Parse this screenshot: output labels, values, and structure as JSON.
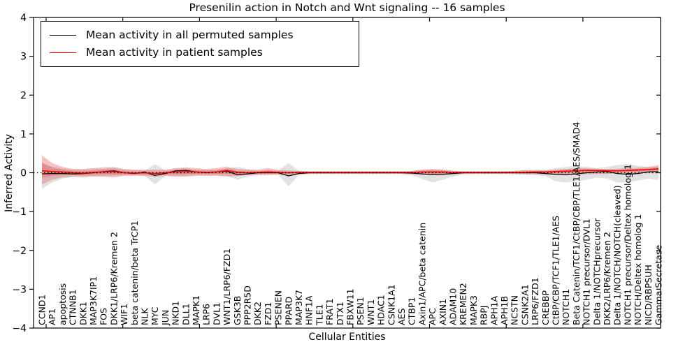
{
  "chart_data": {
    "type": "line",
    "title": "Presenilin action in Notch and Wnt signaling -- 16 samples",
    "xlabel": "Cellular Entities",
    "ylabel": "Inferred Activity",
    "ylim": [
      -4,
      4
    ],
    "ytick_values": [
      4,
      3,
      2,
      1,
      0,
      -1,
      -2,
      -3,
      -4
    ],
    "ytick_labels": [
      "4",
      "3",
      "2",
      "1",
      "0",
      "−1",
      "−2",
      "−3",
      "−4"
    ],
    "grid": false,
    "zero_line": "dotted-black",
    "legend_position": "upper left",
    "x_tick_label_rotation": 90,
    "categories": [
      "CCND1",
      "AP1",
      "apoptosis",
      "CTNNB1",
      "DKK1",
      "MAP3K7IP1",
      "FOS",
      "DKK1/LRP6/Kremen 2",
      "WIF1",
      "beta catenin/beta TrCP1",
      "NLK",
      "MYC",
      "JUN",
      "NKD1",
      "DLL1",
      "MAPK1",
      "LRP6",
      "DVL1",
      "WNT1/LRP6/FZD1",
      "GSK3B",
      "PPP2R5D",
      "DKK2",
      "FZD1",
      "PSENEN",
      "PPARD",
      "MAP3K7",
      "HNF1A",
      "TLE1",
      "FRAT1",
      "DTX1",
      "FBXW11",
      "PSEN1",
      "WNT1",
      "HDAC1",
      "CSNK1A1",
      "AES",
      "CTBP1",
      "Axin1/APC/beta catenin",
      "APC",
      "AXIN1",
      "ADAM10",
      "KREMEN2",
      "MAPK3",
      "RBPJ",
      "APH1A",
      "APH1B",
      "NCSTN",
      "CSNK2A1",
      "LRP6/FZD1",
      "CREBBP",
      "CtBP/CBP/TCF1/TLE1/AES",
      "NOTCH1",
      "Beta Catenin/TCF1/CtBP/CBP/TLE1/AES/SMAD4",
      "NOTCH1 precursor/DVL1",
      "Delta 1/NOTCHprecursor",
      "DKK2/LRP6/Kremen 2",
      "Delta 1/NOTCH/NOTCH(cleaved)",
      "NOTCH1 precursor/Deltex homolog 1",
      "NOTCH/Deltex homolog 1",
      "NICD/RBPSUH",
      "Gamma Secretase"
    ],
    "series": [
      {
        "name": "Mean activity in all permuted samples",
        "color": "#000000",
        "band_color": "#bebebe",
        "values": [
          -0.03,
          -0.02,
          -0.02,
          -0.03,
          -0.02,
          0,
          0.03,
          0.05,
          0,
          -0.02,
          0.02,
          -0.07,
          -0.02,
          0.05,
          0.06,
          0.02,
          0,
          0.02,
          0.04,
          -0.05,
          -0.03,
          0,
          0,
          0,
          -0.08,
          -0.02,
          0,
          0,
          0,
          0,
          0,
          0,
          0,
          0,
          0,
          0,
          -0.01,
          -0.03,
          -0.05,
          -0.04,
          -0.02,
          0,
          0,
          0,
          0,
          0,
          0,
          0,
          0,
          -0.02,
          -0.04,
          -0.05,
          -0.03,
          0,
          0.02,
          0.03,
          -0.02,
          -0.04,
          -0.02,
          0.02,
          0.03
        ],
        "upper": [
          0.26,
          0.15,
          0.1,
          0.08,
          0.08,
          0.1,
          0.1,
          0.12,
          0.08,
          0.06,
          0.06,
          0.22,
          0.06,
          0.1,
          0.12,
          0.08,
          0.06,
          0.08,
          0.1,
          0.15,
          0.1,
          0.05,
          0.04,
          0.05,
          0.25,
          0.05,
          0.03,
          0.03,
          0.03,
          0.03,
          0.03,
          0.03,
          0.03,
          0.03,
          0.03,
          0.03,
          0.05,
          0.08,
          0.08,
          0.08,
          0.05,
          0.03,
          0.03,
          0.03,
          0.03,
          0.03,
          0.04,
          0.06,
          0.08,
          0.08,
          0.12,
          0.15,
          0.18,
          0.15,
          0.12,
          0.15,
          0.2,
          0.22,
          0.18,
          0.15,
          0.14
        ],
        "lower": [
          -0.41,
          -0.25,
          -0.15,
          -0.1,
          -0.08,
          -0.08,
          -0.08,
          -0.08,
          -0.06,
          -0.06,
          -0.08,
          -0.3,
          -0.08,
          -0.08,
          -0.08,
          -0.06,
          -0.06,
          -0.06,
          -0.08,
          -0.18,
          -0.1,
          -0.05,
          -0.04,
          -0.05,
          -0.35,
          -0.06,
          -0.03,
          -0.03,
          -0.03,
          -0.03,
          -0.03,
          -0.03,
          -0.03,
          -0.03,
          -0.03,
          -0.03,
          -0.06,
          -0.16,
          -0.25,
          -0.18,
          -0.1,
          -0.04,
          -0.03,
          -0.03,
          -0.03,
          -0.03,
          -0.04,
          -0.05,
          -0.06,
          -0.08,
          -0.22,
          -0.25,
          -0.22,
          -0.18,
          -0.12,
          -0.15,
          -0.25,
          -0.25,
          -0.2,
          -0.15,
          -0.18
        ]
      },
      {
        "name": "Mean activity in patient samples",
        "color": "#ff0000",
        "band_color": "#e06060",
        "values": [
          0.05,
          0.03,
          0.02,
          0,
          -0.01,
          0.01,
          0.02,
          0.03,
          0,
          -0.01,
          0,
          -0.02,
          0,
          0.02,
          0.03,
          0.02,
          0.01,
          0.02,
          0.06,
          0.01,
          0,
          0.01,
          0.02,
          0.01,
          0,
          0.01,
          0.01,
          0.01,
          0.01,
          0.01,
          0.01,
          0.01,
          0.01,
          0.01,
          0.01,
          0.01,
          0.01,
          0.02,
          0.02,
          0.02,
          0.01,
          0.01,
          0.01,
          0.01,
          0.01,
          0.01,
          0.01,
          0.01,
          0.02,
          0.02,
          0.03,
          0.04,
          0.05,
          0.06,
          0.06,
          0.05,
          0.05,
          0.06,
          0.07,
          0.08,
          0.1
        ],
        "upper": [
          0.45,
          0.25,
          0.15,
          0.1,
          0.1,
          0.12,
          0.14,
          0.15,
          0.1,
          0.08,
          0.08,
          0.08,
          0.08,
          0.12,
          0.14,
          0.12,
          0.1,
          0.12,
          0.16,
          0.1,
          0.08,
          0.08,
          0.12,
          0.08,
          0.06,
          0.05,
          0.04,
          0.04,
          0.04,
          0.04,
          0.04,
          0.04,
          0.04,
          0.04,
          0.04,
          0.04,
          0.04,
          0.08,
          0.1,
          0.08,
          0.05,
          0.04,
          0.04,
          0.04,
          0.04,
          0.04,
          0.05,
          0.07,
          0.06,
          0.06,
          0.08,
          0.1,
          0.12,
          0.12,
          0.1,
          0.1,
          0.1,
          0.12,
          0.13,
          0.15,
          0.2
        ],
        "lower": [
          -0.3,
          -0.18,
          -0.12,
          -0.1,
          -0.12,
          -0.1,
          -0.1,
          -0.12,
          -0.08,
          -0.08,
          -0.08,
          -0.1,
          -0.08,
          -0.1,
          -0.1,
          -0.08,
          -0.08,
          -0.08,
          -0.1,
          -0.08,
          -0.06,
          -0.06,
          -0.06,
          -0.05,
          -0.06,
          -0.04,
          -0.03,
          -0.03,
          -0.03,
          -0.03,
          -0.03,
          -0.03,
          -0.03,
          -0.03,
          -0.03,
          -0.03,
          -0.04,
          -0.05,
          -0.06,
          -0.05,
          -0.04,
          -0.03,
          -0.03,
          -0.03,
          -0.03,
          -0.03,
          -0.03,
          -0.04,
          -0.04,
          -0.04,
          -0.05,
          -0.06,
          -0.05,
          -0.04,
          -0.03,
          -0.03,
          -0.02,
          -0.02,
          -0.01,
          0.0,
          0.02
        ]
      }
    ]
  }
}
